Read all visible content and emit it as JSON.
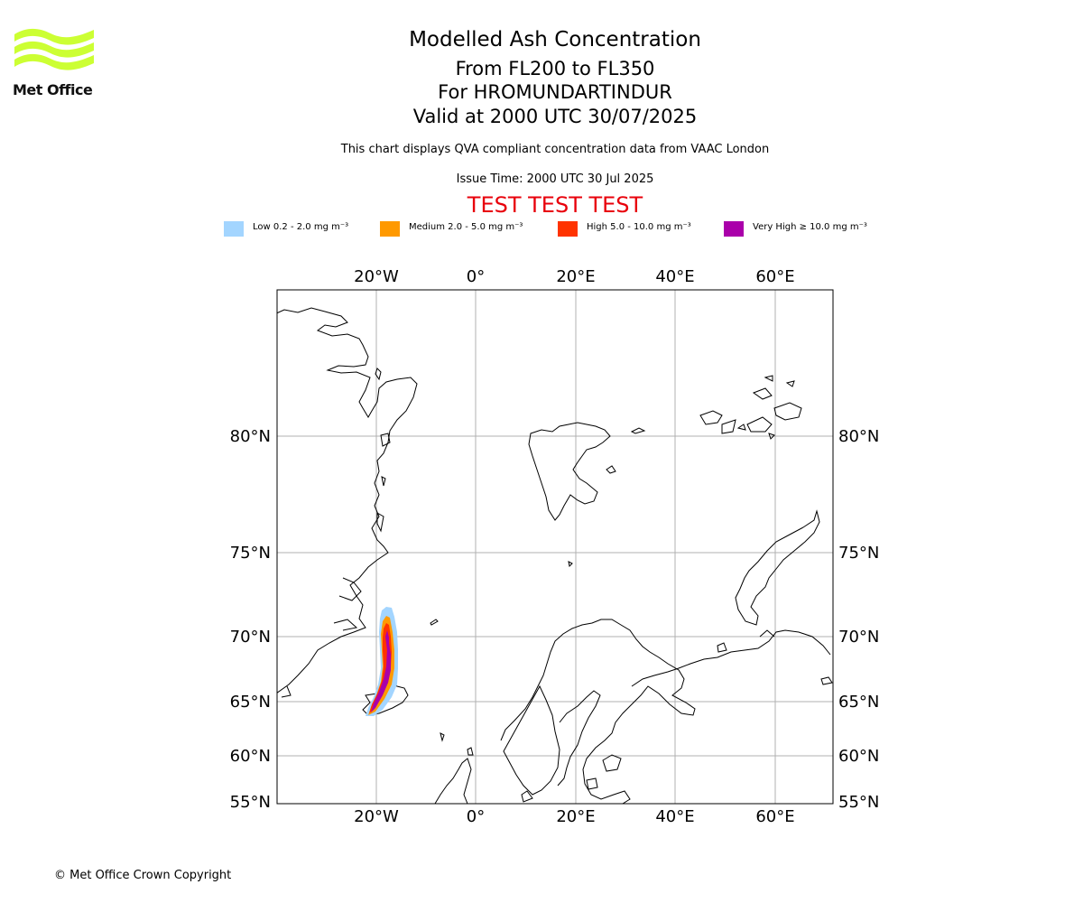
{
  "header": {
    "title": "Modelled Ash Concentration",
    "levels": "From FL200 to FL350",
    "volcano": "For HROMUNDARTINDUR",
    "valid": "Valid at 2000 UTC 30/07/2025",
    "description": "This chart displays QVA compliant concentration data from VAAC London",
    "issue_time": "Issue Time: 2000 UTC 30 Jul 2025",
    "test_banner": "TEST TEST TEST"
  },
  "logo": {
    "text": "Met Office",
    "color": "#ccff33"
  },
  "legend": [
    {
      "label": "Low 0.2 - 2.0 mg m⁻³",
      "color": "#a3d5ff"
    },
    {
      "label": "Medium 2.0 - 5.0 mg m⁻³",
      "color": "#ff9900"
    },
    {
      "label": "High 5.0 - 10.0 mg m⁻³",
      "color": "#ff3300"
    },
    {
      "label": "Very High ≥ 10.0 mg m⁻³",
      "color": "#aa00aa"
    }
  ],
  "map": {
    "lon_labels": [
      "20°W",
      "0°",
      "20°E",
      "40°E",
      "60°E"
    ],
    "lat_labels": [
      "80°N",
      "75°N",
      "70°N",
      "65°N",
      "60°N",
      "55°N"
    ],
    "gridlines": true,
    "coastline_color": "#000000",
    "grid_color": "#b0b0b0"
  },
  "footer": {
    "copyright": "© Met Office Crown Copyright"
  }
}
